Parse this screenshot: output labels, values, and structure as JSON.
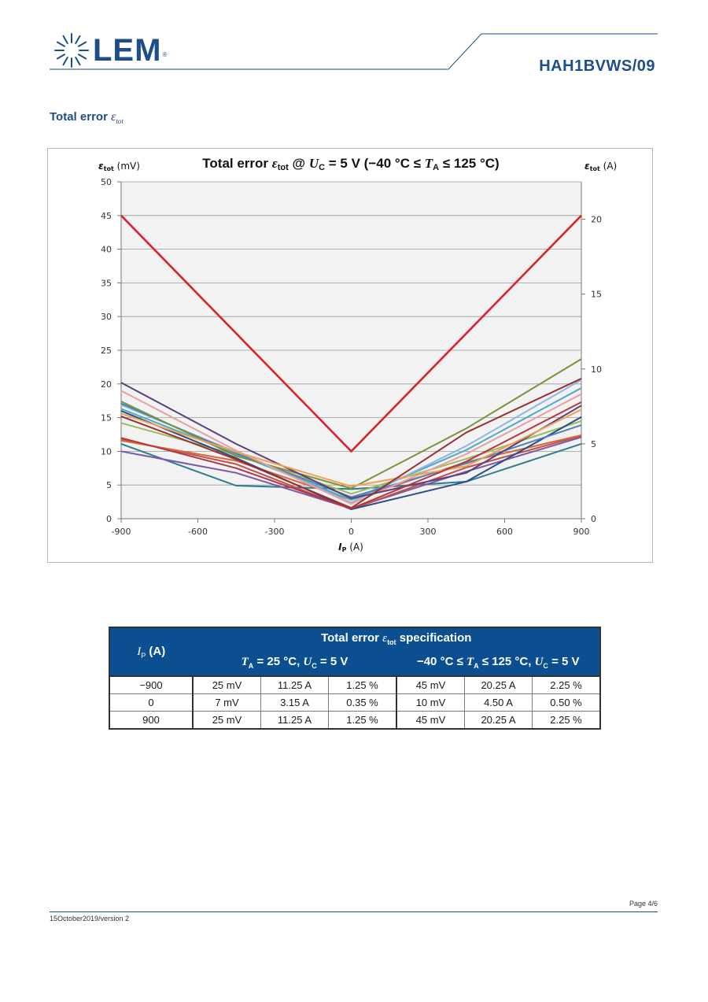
{
  "header": {
    "logo_text": "LEM",
    "logo_mark": "®",
    "part_number": "HAH1BVWS/09"
  },
  "section": {
    "title_prefix": "Total error ",
    "title_symbol": "ε",
    "title_sub": "tot"
  },
  "colors": {
    "brand_blue": "#1c4d8c",
    "table_header": "#0b4f90",
    "spec_line": "#d9232a"
  },
  "chart_data": {
    "type": "line",
    "title": "Total error εtot @ UC = 5 V (−40 °C ≤ TA ≤ 125 °C)",
    "title_parts": {
      "a": "Total error ",
      "b": "ε",
      "c": "tot",
      "d": " @ ",
      "e": "U",
      "f": "C",
      "g": " = 5 V (−40 °C ≤ ",
      "h": "T",
      "i": "A",
      "j": " ≤ 125 °C)"
    },
    "ylabel_left": {
      "sym": "ε",
      "sub": "tot",
      "unit": " (mV)"
    },
    "ylabel_right": {
      "sym": "ε",
      "sub": "tot",
      "unit": " (A)"
    },
    "xlabel": {
      "sym": "I",
      "sub": "P",
      "unit": " (A)"
    },
    "xlim": [
      -900,
      900
    ],
    "ylim_left": [
      0,
      50
    ],
    "ylim_right": [
      0,
      22.5
    ],
    "x_ticks": [
      "-900",
      "-600",
      "-300",
      "0",
      "300",
      "600",
      "900"
    ],
    "y_ticks_left": [
      "0",
      "5",
      "10",
      "15",
      "20",
      "25",
      "30",
      "35",
      "40",
      "45",
      "50"
    ],
    "y_ticks_right": [
      "0",
      "5",
      "10",
      "15",
      "20"
    ],
    "grid": true,
    "spec_series": {
      "name": "",
      "color": "#d9232a",
      "x": [
        -900,
        0,
        900
      ],
      "y": [
        45,
        10,
        45
      ]
    },
    "series": [
      {
        "color": "#2e7d8f",
        "x": [
          -900,
          -450,
          0,
          450,
          900
        ],
        "y": [
          11.1,
          4.9,
          4.4,
          5.5,
          11.1
        ]
      },
      {
        "color": "#7b5aa6",
        "x": [
          -900,
          -450,
          0,
          450,
          900
        ],
        "y": [
          10.0,
          6.8,
          1.5,
          7.0,
          12.1
        ]
      },
      {
        "color": "#c0504d",
        "x": [
          -900,
          -450,
          0,
          450,
          900
        ],
        "y": [
          11.8,
          8.1,
          1.4,
          7.6,
          12.3
        ]
      },
      {
        "color": "#d46a3a",
        "x": [
          -900,
          -450,
          0,
          450,
          900
        ],
        "y": [
          11.6,
          8.6,
          2.8,
          8.4,
          12.4
        ]
      },
      {
        "color": "#9bbb59",
        "x": [
          -900,
          -450,
          0,
          450,
          900
        ],
        "y": [
          14.2,
          9.5,
          3.7,
          8.9,
          14.5
        ]
      },
      {
        "color": "#2c4d87",
        "x": [
          -900,
          -450,
          0,
          450,
          900
        ],
        "y": [
          16.0,
          9.0,
          1.4,
          5.5,
          15.1
        ]
      },
      {
        "color": "#4bacc6",
        "x": [
          -900,
          -450,
          0,
          450,
          900
        ],
        "y": [
          16.3,
          9.6,
          2.8,
          10.2,
          19.4
        ]
      },
      {
        "color": "#8fb6e0",
        "x": [
          -900,
          -450,
          0,
          450,
          900
        ],
        "y": [
          16.9,
          9.9,
          2.4,
          10.8,
          20.6
        ]
      },
      {
        "color": "#4f81bd",
        "x": [
          -900,
          -450,
          0,
          450,
          900
        ],
        "y": [
          17.1,
          9.7,
          3.2,
          8.2,
          13.9
        ]
      },
      {
        "color": "#77933c",
        "x": [
          -900,
          -450,
          0,
          450,
          900
        ],
        "y": [
          17.4,
          9.3,
          4.5,
          13.4,
          23.7
        ]
      },
      {
        "color": "#e6a0a0",
        "x": [
          -900,
          -450,
          0,
          450,
          900
        ],
        "y": [
          19.0,
          10.1,
          2.2,
          9.6,
          18.5
        ]
      },
      {
        "color": "#5c3f7a",
        "x": [
          -900,
          -450,
          0,
          450,
          900
        ],
        "y": [
          20.2,
          11.1,
          3.0,
          6.8,
          16.8
        ]
      },
      {
        "color": "#f0a050",
        "x": [
          -900,
          -450,
          0,
          450,
          900
        ],
        "y": [
          15.6,
          9.9,
          4.8,
          7.8,
          16.2
        ]
      },
      {
        "color": "#9a2f2f",
        "x": [
          -900,
          -450,
          0,
          450,
          900
        ],
        "y": [
          15.2,
          8.8,
          1.6,
          12.8,
          20.8
        ]
      },
      {
        "color": "#b4373f",
        "x": [
          -900,
          -450,
          0,
          450,
          900
        ],
        "y": [
          12.0,
          7.5,
          1.5,
          8.5,
          17.3
        ]
      }
    ]
  },
  "table": {
    "col1_header_sym": "I",
    "col1_header_sub": "P",
    "col1_header_unit": "  (A)",
    "group_header": {
      "a": "Total error ",
      "b": "ε",
      "c": "tot",
      "d": " specification"
    },
    "group1": {
      "a": "T",
      "b": "A",
      "c": " = 25 °C, ",
      "d": "U",
      "e": "C",
      "f": " = 5 V"
    },
    "group2": {
      "a": "−40 °C ≤ ",
      "b": "T",
      "c": "A",
      "d": " ≤ 125 °C, ",
      "e": "U",
      "f": "C",
      "g": " = 5 V"
    },
    "rows": [
      {
        "ip": "−900",
        "c1": "25 mV",
        "c2": "11.25 A",
        "c3": "1.25 %",
        "c4": "45 mV",
        "c5": "20.25 A",
        "c6": "2.25 %"
      },
      {
        "ip": "0",
        "c1": "7 mV",
        "c2": "3.15 A",
        "c3": "0.35 %",
        "c4": "10 mV",
        "c5": "4.50 A",
        "c6": "0.50 %"
      },
      {
        "ip": "900",
        "c1": "25 mV",
        "c2": "11.25 A",
        "c3": "1.25 %",
        "c4": "45 mV",
        "c5": "20.25 A",
        "c6": "2.25 %"
      }
    ]
  },
  "footer": {
    "page": "Page 4/6",
    "version": "15October2019/version 2"
  }
}
